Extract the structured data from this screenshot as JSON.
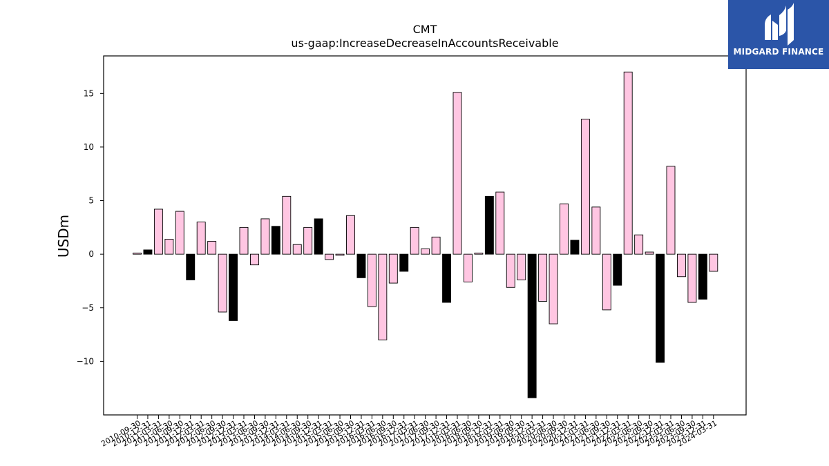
{
  "chart_data": {
    "type": "bar",
    "title": "CMT",
    "subtitle": "us-gaap:IncreaseDecreaseInAccountsReceivable",
    "xlabel": "",
    "ylabel": "USDm",
    "ylim": [
      -15,
      18.5
    ],
    "yticks": [
      -10,
      -5,
      0,
      5,
      10,
      15
    ],
    "grid": false,
    "colors": {
      "q4_bar": "#000000",
      "other_bar": "#ffc6e2",
      "bar_edge": "#000000"
    },
    "categories": [
      "2010-09-30",
      "2010-12-31",
      "2011-03-31",
      "2011-06-30",
      "2011-09-30",
      "2011-12-31",
      "2012-03-31",
      "2012-06-30",
      "2012-09-30",
      "2012-12-31",
      "2013-03-31",
      "2013-06-30",
      "2013-09-30",
      "2013-12-31",
      "2014-03-31",
      "2014-06-30",
      "2014-09-30",
      "2014-12-31",
      "2015-03-31",
      "2015-06-30",
      "2015-09-30",
      "2015-12-31",
      "2016-03-31",
      "2016-06-30",
      "2016-09-30",
      "2016-12-31",
      "2017-03-31",
      "2017-06-30",
      "2017-09-30",
      "2017-12-31",
      "2018-03-31",
      "2018-06-30",
      "2018-09-30",
      "2018-12-31",
      "2019-03-31",
      "2019-06-30",
      "2019-09-30",
      "2019-12-31",
      "2020-03-31",
      "2020-06-30",
      "2020-09-30",
      "2020-12-31",
      "2021-03-31",
      "2021-06-30",
      "2021-09-30",
      "2021-12-31",
      "2022-03-31",
      "2022-06-30",
      "2022-09-30",
      "2022-12-31",
      "2023-03-31",
      "2023-06-30",
      "2023-09-30",
      "2023-12-31",
      "2024-03-31"
    ],
    "values": [
      0.1,
      0.4,
      4.2,
      1.4,
      4.0,
      -2.4,
      3.0,
      1.2,
      -5.4,
      -6.2,
      2.5,
      -1.0,
      3.3,
      2.6,
      5.4,
      0.9,
      2.5,
      3.3,
      -0.5,
      -0.1,
      3.6,
      -2.2,
      -4.9,
      -8.0,
      -2.7,
      -1.6,
      2.5,
      0.5,
      1.6,
      -4.5,
      15.1,
      -2.6,
      0.1,
      5.4,
      5.8,
      -3.1,
      -2.4,
      -13.4,
      -4.4,
      -6.5,
      4.7,
      1.3,
      12.6,
      4.4,
      -5.2,
      -2.9,
      17.0,
      1.8,
      0.2,
      -10.1,
      8.2,
      -2.1,
      -4.5,
      -4.2,
      -1.6
    ]
  },
  "logo": {
    "text": "MIDGARD FINANCE"
  }
}
